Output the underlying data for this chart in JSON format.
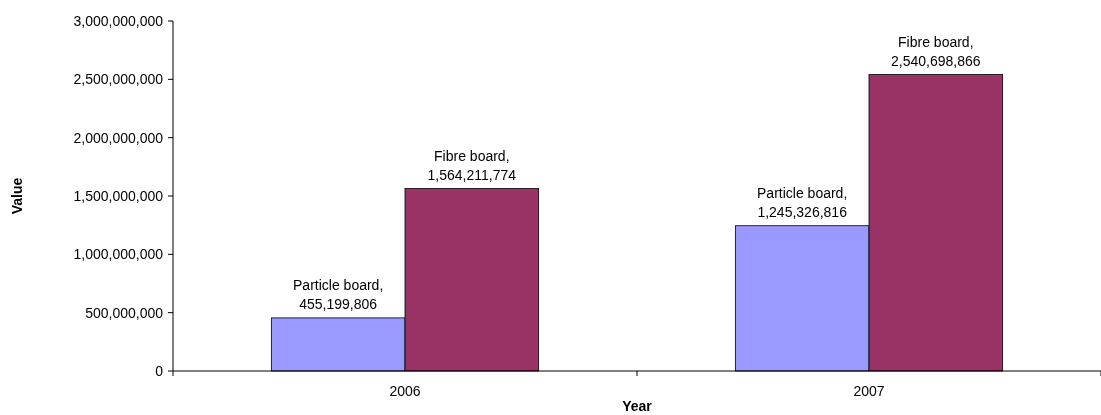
{
  "chart_data": {
    "type": "bar",
    "xlabel": "Year",
    "ylabel": "Value",
    "categories": [
      "2006",
      "2007"
    ],
    "series": [
      {
        "color": "#9999ff",
        "values": [
          455199806,
          1245326816
        ],
        "value_labels": [
          "Particle board, 455,199,806",
          "Particle board, 1,245,326,816"
        ]
      },
      {
        "color": "#993366",
        "values": [
          1564211774,
          2540698866
        ],
        "value_labels": [
          "Fibre board, 1,564,211,774",
          "Fibre board, 2,540,698,866"
        ]
      }
    ],
    "ylim": [
      0,
      3000000000
    ],
    "yticks": [
      {
        "value": 0,
        "label": "0"
      },
      {
        "value": 500000000,
        "label": "500,000,000"
      },
      {
        "value": 1000000000,
        "label": "1,000,000,000"
      },
      {
        "value": 1500000000,
        "label": "1,500,000,000"
      },
      {
        "value": 2000000000,
        "label": "2,000,000,000"
      },
      {
        "value": 2500000000,
        "label": "2,500,000,000"
      },
      {
        "value": 3000000000,
        "label": "3,000,000,000"
      }
    ],
    "grid": false
  }
}
